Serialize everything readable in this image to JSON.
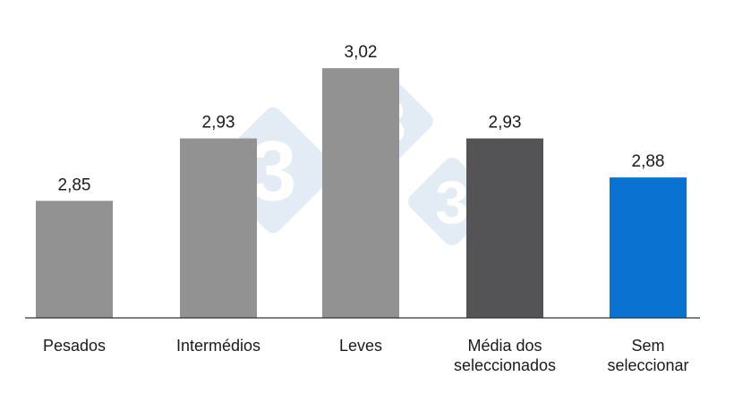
{
  "chart_data": {
    "type": "bar",
    "categories": [
      "Pesados",
      "Intermédios",
      "Leves",
      "Média dos seleccionados",
      "Sem seleccionar"
    ],
    "category_lines": [
      [
        "Pesados"
      ],
      [
        "Intermédios"
      ],
      [
        "Leves"
      ],
      [
        "Média dos",
        "seleccionados"
      ],
      [
        "Sem",
        "seleccionar"
      ]
    ],
    "values": [
      2.85,
      2.93,
      3.02,
      2.93,
      2.88
    ],
    "value_labels": [
      "2,85",
      "2,93",
      "3,02",
      "2,93",
      "2,88"
    ],
    "bar_colors": [
      "#929292",
      "#929292",
      "#929292",
      "#545456",
      "#0a73d2"
    ],
    "ylim": [
      2.7,
      3.05
    ],
    "title": "",
    "xlabel": "",
    "ylabel": "",
    "grid": false,
    "legend": false
  },
  "watermark": {
    "text": "3",
    "color": "#dfe8f3"
  }
}
